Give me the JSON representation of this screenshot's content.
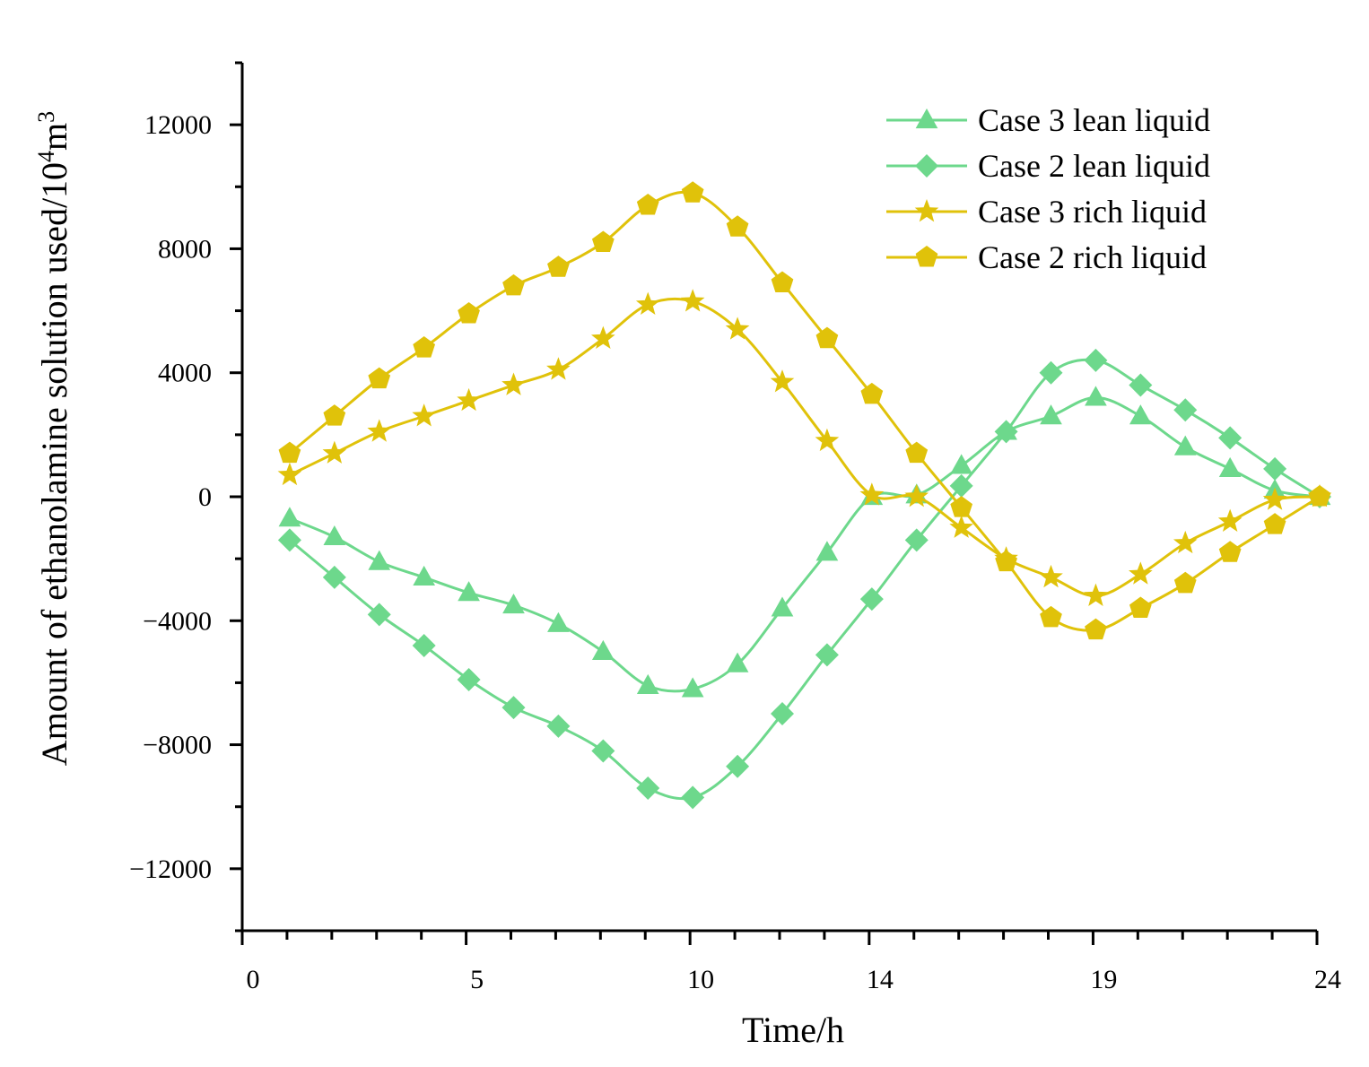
{
  "chart_data": {
    "type": "line",
    "title": "",
    "xlabel": "Time/h",
    "ylabel_main": "Amount of ethanolamine solution used/10",
    "ylabel_sup": "4",
    "ylabel_tail": "m",
    "ylabel_sup2": "3",
    "xlim": [
      0,
      24
    ],
    "ylim": [
      -14000,
      14000
    ],
    "x_ticks": [
      {
        "label": "0",
        "value": 0
      },
      {
        "label": "5",
        "value": 5
      },
      {
        "label": "10",
        "value": 10
      },
      {
        "label": "14",
        "value": 14
      },
      {
        "label": "19",
        "value": 19
      },
      {
        "label": "24",
        "value": 24
      }
    ],
    "y_ticks": [
      {
        "label": "12000",
        "value": 12000
      },
      {
        "label": "8000",
        "value": 8000
      },
      {
        "label": "4000",
        "value": 4000
      },
      {
        "label": "0",
        "value": 0
      },
      {
        "label": "−4000",
        "value": -4000
      },
      {
        "label": "−8000",
        "value": -8000
      },
      {
        "label": "−12000",
        "value": -12000
      }
    ],
    "legend_position": "top-right",
    "x": [
      1,
      2,
      3,
      4,
      5,
      6,
      7,
      8,
      9,
      10,
      11,
      12,
      13,
      14,
      15,
      16,
      17,
      18,
      19,
      20,
      21,
      22,
      23,
      24
    ],
    "series": [
      {
        "name": "Case 3 lean liquid",
        "color": "#6dd88c",
        "marker": "triangle",
        "values": [
          -700,
          -1300,
          -2100,
          -2600,
          -3100,
          -3500,
          -4100,
          -5000,
          -6100,
          -6200,
          -5400,
          -3600,
          -1800,
          0,
          50,
          1000,
          2100,
          2600,
          3200,
          2600,
          1600,
          900,
          200,
          0
        ]
      },
      {
        "name": "Case 2 lean liquid",
        "color": "#6dd88c",
        "marker": "diamond",
        "values": [
          -1400,
          -2600,
          -3800,
          -4800,
          -5900,
          -6800,
          -7400,
          -8200,
          -9400,
          -9700,
          -8700,
          -7000,
          -5100,
          -3300,
          -1400,
          350,
          2100,
          4000,
          4400,
          3600,
          2800,
          1900,
          900,
          0
        ]
      },
      {
        "name": "Case 3 rich liquid",
        "color": "#e0c20a",
        "marker": "star",
        "values": [
          700,
          1400,
          2100,
          2600,
          3100,
          3600,
          4100,
          5100,
          6200,
          6300,
          5400,
          3700,
          1800,
          50,
          0,
          -1000,
          -2000,
          -2600,
          -3200,
          -2500,
          -1500,
          -800,
          -100,
          0
        ]
      },
      {
        "name": "Case 2 rich liquid",
        "color": "#e0c20a",
        "marker": "pentagon",
        "values": [
          1400,
          2600,
          3800,
          4800,
          5900,
          6800,
          7400,
          8200,
          9400,
          9800,
          8700,
          6900,
          5100,
          3300,
          1400,
          -350,
          -2100,
          -3900,
          -4300,
          -3600,
          -2800,
          -1800,
          -900,
          0
        ]
      }
    ]
  }
}
